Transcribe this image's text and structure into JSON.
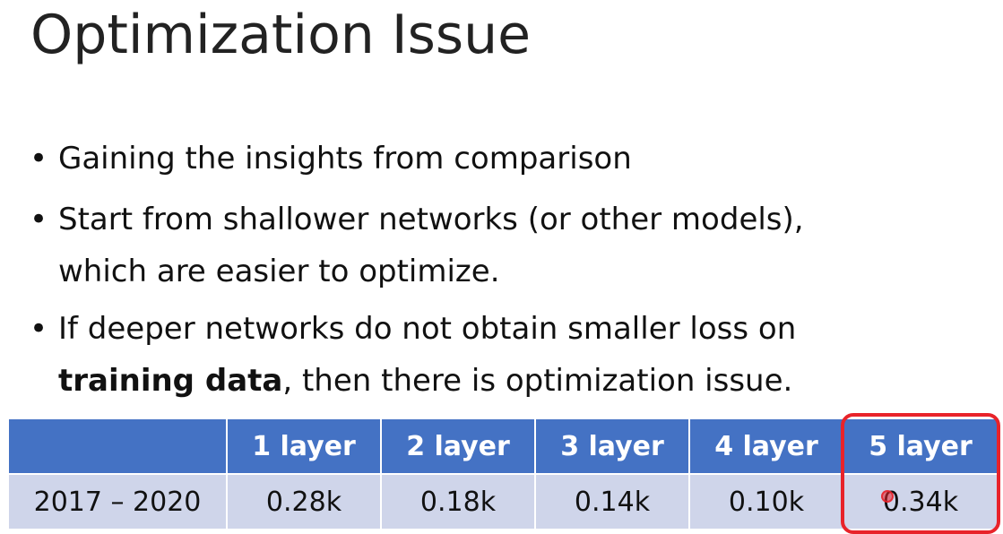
{
  "slide": {
    "title": "Optimization Issue",
    "bullets": [
      {
        "marker": "•",
        "lines": [
          "Gaining the insights from comparison"
        ]
      },
      {
        "marker": "•",
        "lines": [
          "Start from shallower networks (or other models),",
          "which are easier to optimize."
        ]
      },
      {
        "marker": "•",
        "line1": "If deeper networks do not obtain smaller loss on",
        "line2_bold": "training data",
        "line2_rest": ",  then there is optimization issue."
      }
    ]
  },
  "table": {
    "headers": [
      "",
      "1 layer",
      "2 layer",
      "3 layer",
      "4 layer",
      "5 layer"
    ],
    "rows": [
      {
        "label": "2017 – 2020",
        "values": [
          "0.28k",
          "0.18k",
          "0.14k",
          "0.10k",
          "0.34k"
        ]
      }
    ],
    "colors": {
      "header_bg": "#4472c4",
      "row_bg": "#cfd5ea",
      "highlight": "#e8232a"
    }
  }
}
